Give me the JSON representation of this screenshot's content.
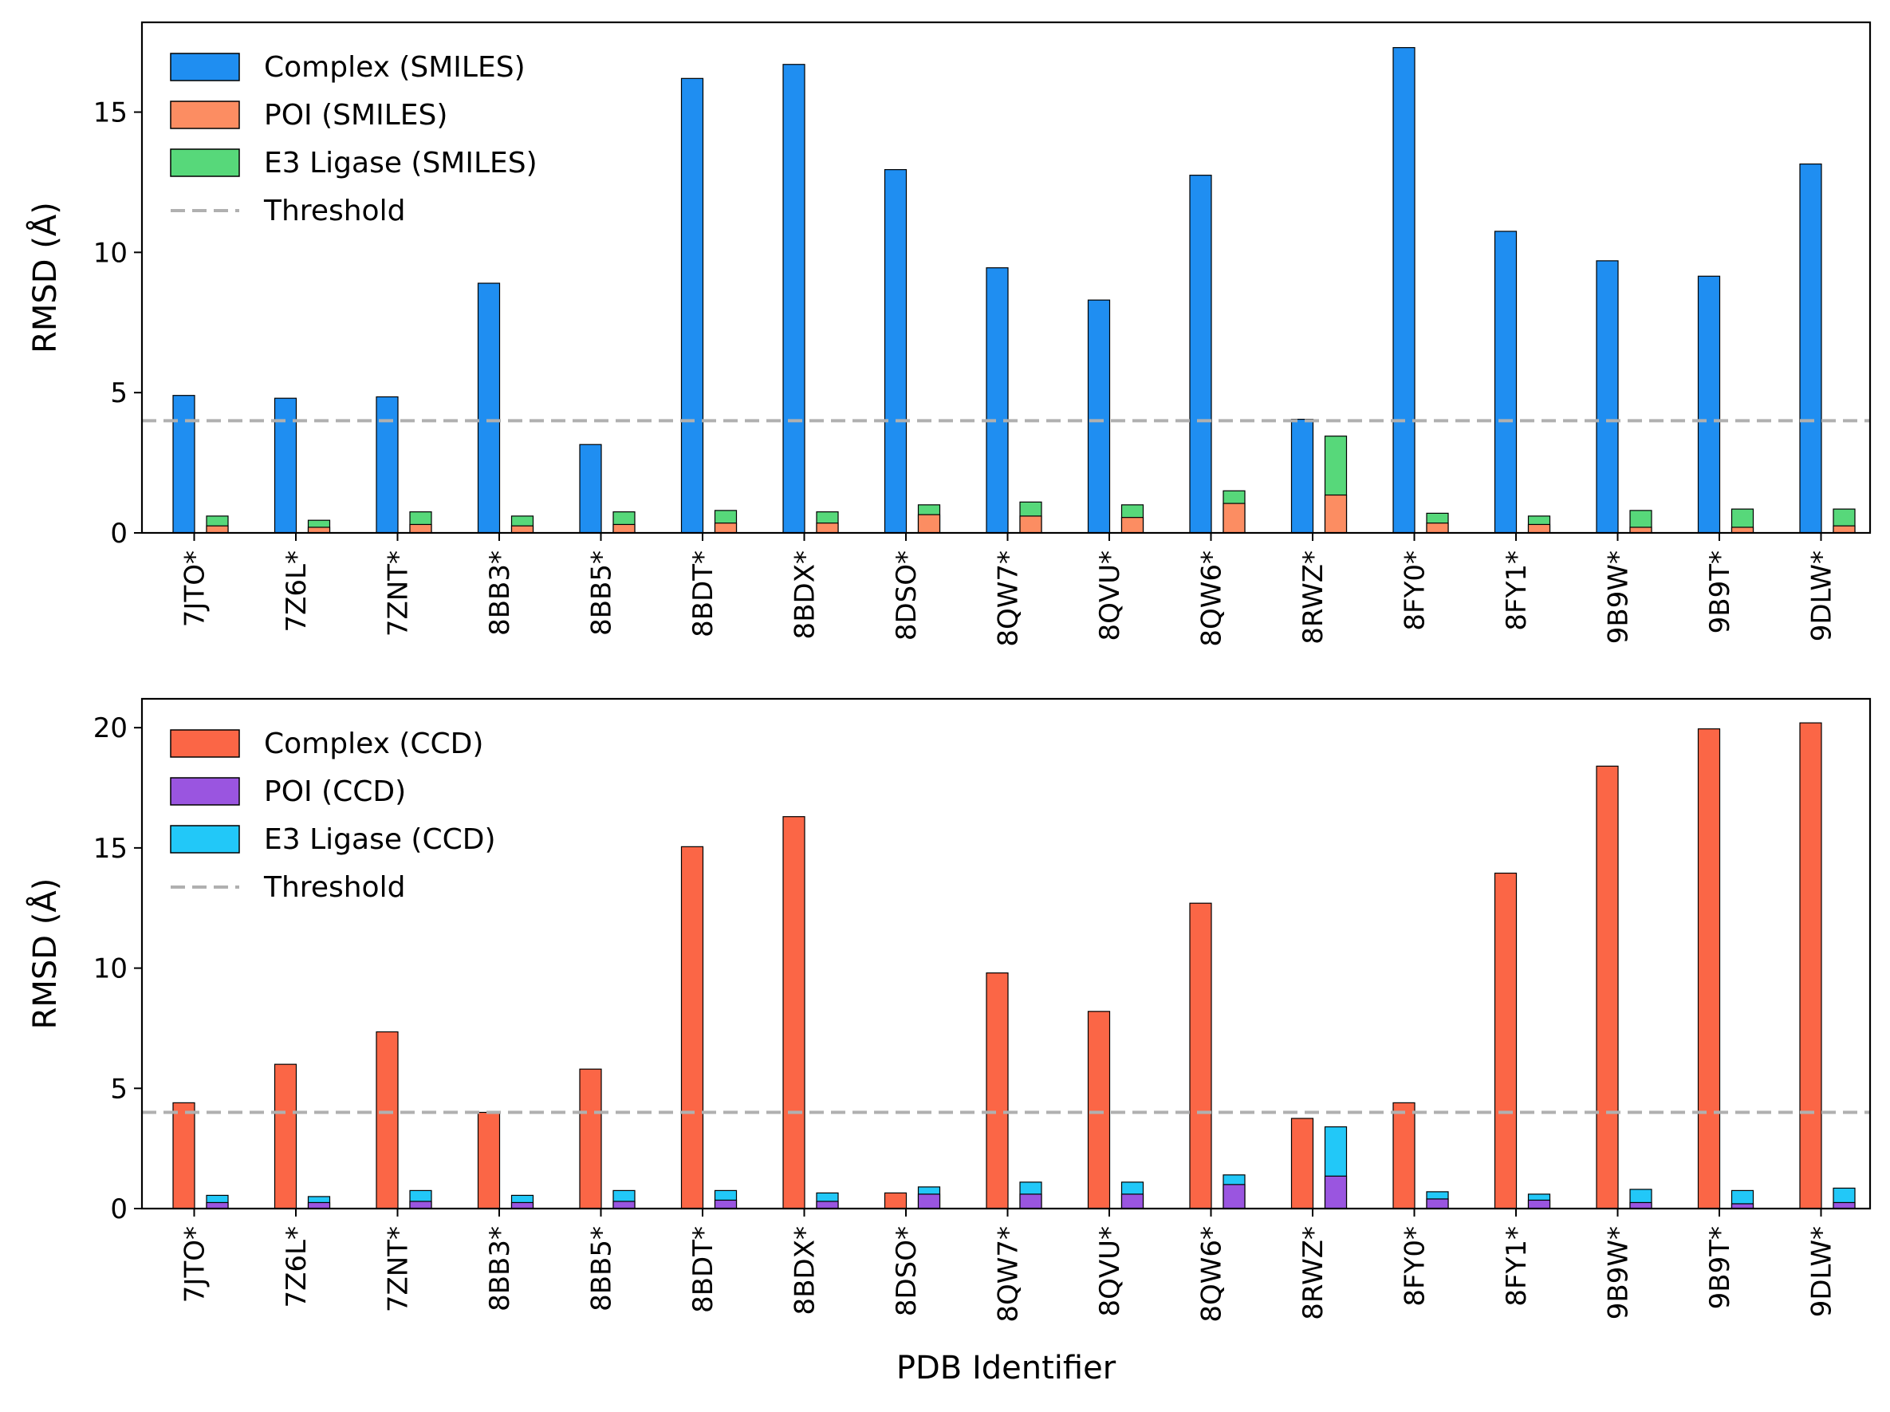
{
  "chart_data": [
    {
      "type": "bar",
      "stacked_components": true,
      "xlabel": "",
      "ylabel": "RMSD (Å)",
      "ylim": [
        0,
        18.2
      ],
      "yticks": [
        0,
        5,
        10,
        15
      ],
      "grid": false,
      "legend_position": "top-left",
      "categories": [
        "7JTO*",
        "7Z6L*",
        "7ZNT*",
        "8BB3*",
        "8BB5*",
        "8BDT*",
        "8BDX*",
        "8DSO*",
        "8QW7*",
        "8QVU*",
        "8QW6*",
        "8RWZ*",
        "8FY0*",
        "8FY1*",
        "9B9W*",
        "9B9T*",
        "9DLW*"
      ],
      "series": [
        {
          "name": "Complex (SMILES)",
          "color": "#1f8ef1",
          "values": [
            4.9,
            4.8,
            4.85,
            8.9,
            3.15,
            16.2,
            16.7,
            12.95,
            9.45,
            8.3,
            12.75,
            4.05,
            17.3,
            10.75,
            9.7,
            9.15,
            13.15
          ]
        },
        {
          "name": "POI (SMILES)",
          "color": "#fc8d62",
          "values": [
            0.25,
            0.2,
            0.3,
            0.25,
            0.3,
            0.35,
            0.35,
            0.65,
            0.6,
            0.55,
            1.05,
            1.35,
            0.35,
            0.3,
            0.2,
            0.2,
            0.25
          ]
        },
        {
          "name": "E3 Ligase (SMILES)",
          "color": "#57d87a",
          "values": [
            0.6,
            0.45,
            0.75,
            0.6,
            0.75,
            0.8,
            0.75,
            1.0,
            1.1,
            1.0,
            1.5,
            3.45,
            0.7,
            0.6,
            0.8,
            0.85,
            0.85
          ]
        }
      ],
      "threshold": {
        "name": "Threshold",
        "value": 4,
        "color": "#b0b0b0"
      }
    },
    {
      "type": "bar",
      "stacked_components": true,
      "xlabel": "PDB Identifier",
      "ylabel": "RMSD (Å)",
      "ylim": [
        0,
        21.2
      ],
      "yticks": [
        0,
        5,
        10,
        15,
        20
      ],
      "grid": false,
      "legend_position": "top-left",
      "categories": [
        "7JTO*",
        "7Z6L*",
        "7ZNT*",
        "8BB3*",
        "8BB5*",
        "8BDT*",
        "8BDX*",
        "8DSO*",
        "8QW7*",
        "8QVU*",
        "8QW6*",
        "8RWZ*",
        "8FY0*",
        "8FY1*",
        "9B9W*",
        "9B9T*",
        "9DLW*"
      ],
      "series": [
        {
          "name": "Complex (CCD)",
          "color": "#fb6646",
          "values": [
            4.4,
            6.0,
            7.35,
            4.0,
            5.8,
            15.05,
            16.3,
            0.65,
            9.8,
            8.2,
            12.7,
            3.75,
            4.4,
            13.95,
            18.4,
            19.95,
            20.2
          ]
        },
        {
          "name": "POI (CCD)",
          "color": "#9a55e0",
          "values": [
            0.25,
            0.25,
            0.3,
            0.25,
            0.3,
            0.35,
            0.3,
            0.6,
            0.6,
            0.6,
            1.0,
            1.35,
            0.4,
            0.35,
            0.25,
            0.2,
            0.25
          ]
        },
        {
          "name": "E3 Ligase (CCD)",
          "color": "#22c8f8",
          "values": [
            0.55,
            0.5,
            0.75,
            0.55,
            0.75,
            0.75,
            0.65,
            0.9,
            1.1,
            1.1,
            1.4,
            3.4,
            0.7,
            0.6,
            0.8,
            0.75,
            0.85
          ]
        }
      ],
      "threshold": {
        "name": "Threshold",
        "value": 4,
        "color": "#b0b0b0"
      }
    }
  ]
}
